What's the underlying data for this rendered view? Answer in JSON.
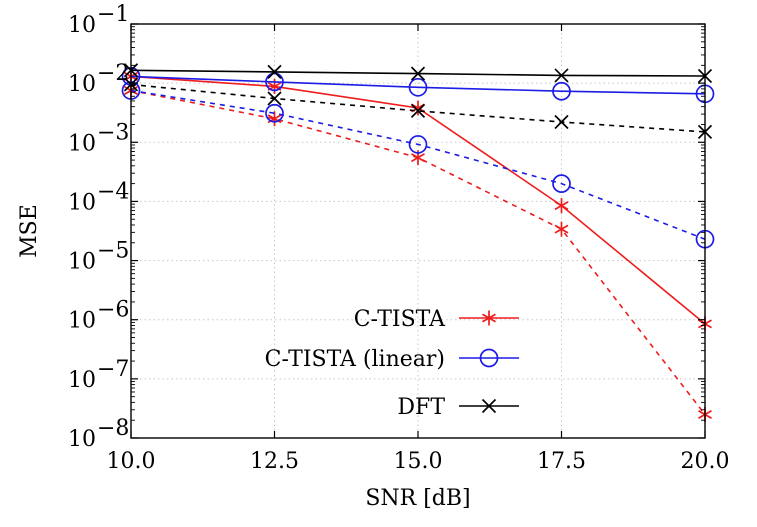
{
  "chart_data": {
    "type": "line",
    "xlabel": "SNR [dB]",
    "ylabel": "MSE",
    "xlim": [
      10,
      20
    ],
    "ylim_exponent": [
      -8,
      -1
    ],
    "yscale": "log",
    "grid": true,
    "legend_position": "bottom-right",
    "x": [
      10,
      12.5,
      15,
      17.5,
      20
    ],
    "x_tick_labels": [
      "10.0",
      "12.5",
      "15.0",
      "17.5",
      "20.0"
    ],
    "y_tick_base": "10",
    "y_tick_exponents": [
      "−8",
      "−7",
      "−6",
      "−5",
      "−4",
      "−3",
      "−2",
      "−1"
    ],
    "legend": [
      {
        "label": "C-TISTA",
        "color": "#ee1c1c",
        "marker": "star"
      },
      {
        "label": "C-TISTA (linear)",
        "color": "#1c1ce6",
        "marker": "circle"
      },
      {
        "label": "DFT",
        "color": "#000000",
        "marker": "x"
      }
    ],
    "series": [
      {
        "legend": 0,
        "style": "solid",
        "color": "#ee1c1c",
        "marker": "star",
        "values": [
          0.013,
          0.0088,
          0.0038,
          8.5e-05,
          8.5e-07
        ]
      },
      {
        "legend": 0,
        "style": "dashed",
        "color": "#ee1c1c",
        "marker": "star",
        "values": [
          0.0075,
          0.0025,
          0.00055,
          3.4e-05,
          2.5e-08
        ]
      },
      {
        "legend": 1,
        "style": "solid",
        "color": "#1c1ce6",
        "marker": "circle",
        "values": [
          0.013,
          0.0105,
          0.0085,
          0.0073,
          0.0066
        ]
      },
      {
        "legend": 1,
        "style": "dashed",
        "color": "#1c1ce6",
        "marker": "circle",
        "values": [
          0.0075,
          0.0031,
          0.00092,
          0.0002,
          2.3e-05
        ]
      },
      {
        "legend": 2,
        "style": "solid",
        "color": "#000000",
        "marker": "x",
        "values": [
          0.0165,
          0.0155,
          0.0145,
          0.0135,
          0.0132
        ]
      },
      {
        "legend": 2,
        "style": "dashed",
        "color": "#000000",
        "marker": "x",
        "values": [
          0.0095,
          0.0055,
          0.0034,
          0.0022,
          0.0015
        ]
      }
    ]
  }
}
